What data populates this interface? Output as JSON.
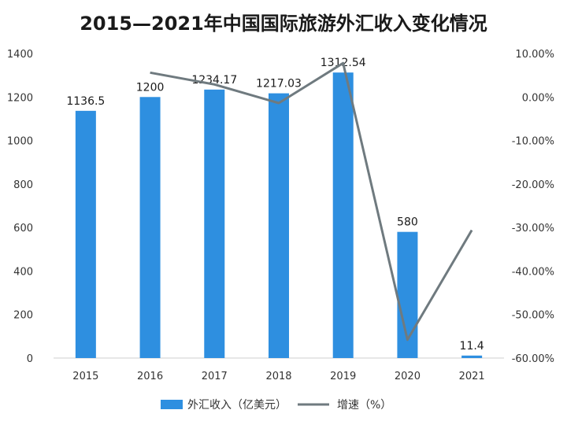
{
  "chart_data": {
    "type": "bar",
    "title": "2015—2021年中国国际旅游外汇收入变化情况",
    "categories": [
      "2015",
      "2016",
      "2017",
      "2018",
      "2019",
      "2020",
      "2021"
    ],
    "series": [
      {
        "name": "外汇收入（亿美元）",
        "kind": "bar",
        "axis": "left",
        "color": "#2E8FE0",
        "values": [
          1136.5,
          1200,
          1234.17,
          1217.03,
          1312.54,
          580,
          11.4
        ],
        "labels": [
          "1136.5",
          "1200",
          "1234.17",
          "1217.03",
          "1312.54",
          "580",
          "11.4"
        ]
      },
      {
        "name": "增速（%）",
        "kind": "line",
        "axis": "right",
        "color": "#6F7A7F",
        "values": [
          null,
          5.6,
          2.9,
          -1.4,
          7.8,
          -55.8,
          -30.6
        ]
      }
    ],
    "y_left": {
      "ticks": [
        "0",
        "200",
        "400",
        "600",
        "800",
        "1000",
        "1200",
        "1400"
      ],
      "range": [
        0,
        1400
      ]
    },
    "y_right": {
      "ticks": [
        "10.00%",
        "0.00%",
        "-10.00%",
        "-20.00%",
        "-30.00%",
        "-40.00%",
        "-50.00%",
        "-60.00%"
      ],
      "range": [
        -60,
        10
      ]
    },
    "grid": false,
    "legend_position": "bottom"
  }
}
